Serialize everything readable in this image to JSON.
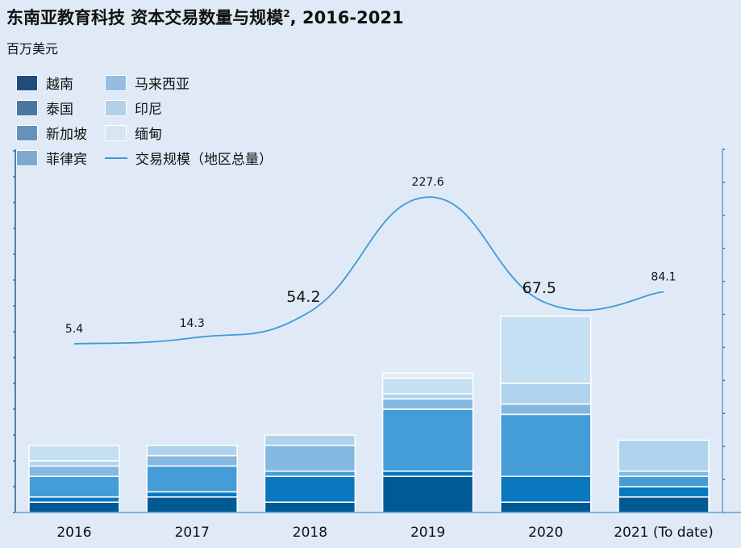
{
  "title": "东南亚教育科技 资本交易数量与规模",
  "title_superscript": "2",
  "title_suffix": ", 2016-2021",
  "unit_label": "百万美元",
  "chart_data": {
    "type": "bar",
    "title": "东南亚教育科技 资本交易数量与规模², 2016-2021",
    "ylabel": "百万美元",
    "categories": [
      "2016",
      "2017",
      "2018",
      "2019",
      "2020",
      "2021 (To date)"
    ],
    "left_axis": {
      "ylim": [
        0,
        70
      ],
      "tick_step": 5,
      "tick_labels_shown": false
    },
    "right_axis": {
      "ylim": [
        -250,
        300
      ],
      "tick_step": 50,
      "tick_labels_shown": false
    },
    "stacked": true,
    "series": [
      {
        "name": "越南",
        "color": "#005a96",
        "legend_color": "#1f4e7c",
        "values": [
          2,
          3,
          2,
          7,
          2,
          3
        ]
      },
      {
        "name": "泰国",
        "color": "#0a78bf",
        "legend_color": "#4a77a0",
        "values": [
          1,
          1,
          5,
          1,
          5,
          2
        ]
      },
      {
        "name": "新加坡",
        "color": "#449dd6",
        "legend_color": "#6691bb",
        "values": [
          4,
          5,
          1,
          12,
          12,
          2
        ]
      },
      {
        "name": "菲律宾",
        "color": "#84b8e1",
        "legend_color": "#7ea9d0",
        "values": [
          2,
          2,
          5,
          2,
          2,
          1
        ]
      },
      {
        "name": "马来西亚",
        "color": "#b0d3ed",
        "legend_color": "#98bce0",
        "values": [
          1,
          2,
          2,
          1,
          4,
          6
        ]
      },
      {
        "name": "印尼",
        "color": "#c5e0f2",
        "legend_color": "#b3d0e8",
        "values": [
          3,
          0,
          0,
          3,
          13,
          0
        ]
      },
      {
        "name": "缅甸",
        "color": "#e0ecf7",
        "legend_color": "#d7e6f3",
        "values": [
          0,
          0,
          0,
          1,
          0,
          0
        ]
      }
    ],
    "line_series": {
      "name": "交易规模（地区总量）",
      "color": "#3f9ad6",
      "axis": "right",
      "values": [
        5.4,
        14.3,
        54.2,
        227.6,
        67.5,
        84.1
      ],
      "labels": [
        "5.4",
        "14.3",
        "54.2",
        "227.6",
        "67.5",
        "84.1"
      ]
    },
    "grid": false,
    "legend_position": "top-left"
  }
}
